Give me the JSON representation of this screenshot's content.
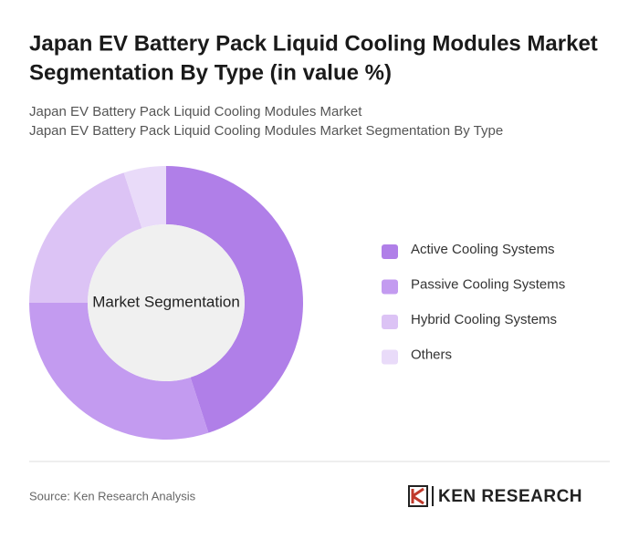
{
  "chart_data": {
    "type": "donut",
    "title": [
      "Japan EV Battery Pack Liquid Cooling Modules Market",
      "Segmentation By Type (in value %)"
    ],
    "subtitles": [
      "Japan EV Battery Pack Liquid Cooling Modules Market",
      "Japan EV Battery Pack Liquid Cooling Modules Market Segmentation By Type"
    ],
    "center_label": "Market Segmentation",
    "categories": [
      "Active Cooling Systems",
      "Passive Cooling Systems",
      "Hybrid Cooling Systems",
      "Others"
    ],
    "values": [
      45,
      30,
      20,
      5
    ],
    "colors": [
      "#b07fe8",
      "#c39bf0",
      "#dcc3f5",
      "#e9dbf9"
    ],
    "source": "Source: Ken Research Analysis",
    "brand": "KEN RESEARCH"
  }
}
